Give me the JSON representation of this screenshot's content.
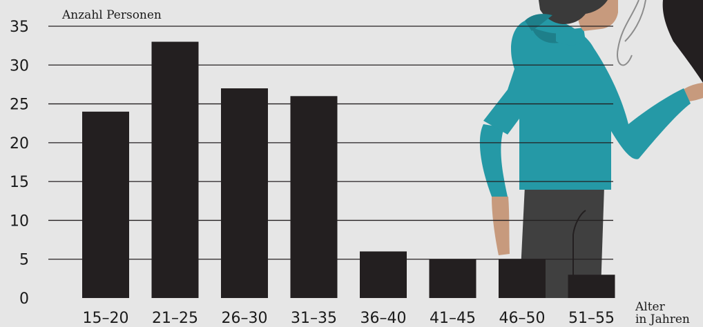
{
  "chart_data": {
    "type": "bar",
    "ylabel": "Anzahl Personen",
    "xlabel_lines": [
      "Alter",
      "in Jahren"
    ],
    "categories": [
      "15–20",
      "21–25",
      "26–30",
      "31–35",
      "36–40",
      "41–45",
      "46–50",
      "51–55"
    ],
    "values": [
      24,
      33,
      27,
      26,
      6,
      5,
      5,
      3
    ],
    "yticks": [
      0,
      5,
      10,
      15,
      20,
      25,
      30,
      35
    ],
    "ylim": [
      0,
      35
    ],
    "grid": true,
    "colors": {
      "bar": "#231f20",
      "background": "#e6e6e6",
      "grid": "#231f20"
    }
  },
  "illustration": {
    "name": "person-looking-at-phone",
    "colors": {
      "hoodie": "#2599a6",
      "pants": "#404040",
      "skin": "#c79a7d",
      "hair": "#3a3a3a"
    }
  }
}
